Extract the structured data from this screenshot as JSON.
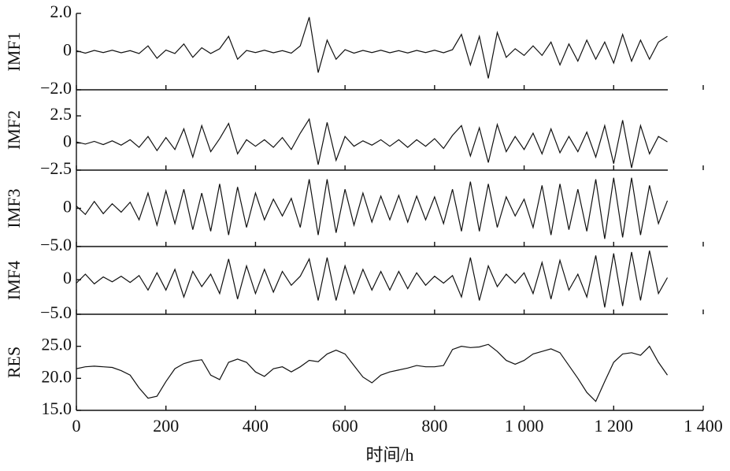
{
  "chart_data": [
    {
      "type": "line",
      "ylabel": "IMF1",
      "ylim": [
        -2,
        2
      ],
      "yticks": [
        {
          "value": 2,
          "label": "2.0"
        },
        0,
        {
          "value": -2,
          "label": "−2.0"
        }
      ],
      "x": [
        0,
        20,
        40,
        60,
        80,
        100,
        120,
        140,
        160,
        180,
        200,
        220,
        240,
        260,
        280,
        300,
        320,
        340,
        360,
        380,
        400,
        420,
        440,
        460,
        480,
        500,
        520,
        540,
        560,
        580,
        600,
        620,
        640,
        660,
        680,
        700,
        720,
        740,
        760,
        780,
        800,
        820,
        840,
        860,
        880,
        900,
        920,
        940,
        960,
        980,
        1000,
        1020,
        1040,
        1060,
        1080,
        1100,
        1120,
        1140,
        1160,
        1180,
        1200,
        1220,
        1240,
        1260,
        1280,
        1300,
        1320
      ],
      "values": [
        0.05,
        -0.08,
        0.06,
        -0.05,
        0.07,
        -0.06,
        0.05,
        -0.1,
        0.3,
        -0.35,
        0.08,
        -0.1,
        0.4,
        -0.3,
        0.2,
        -0.1,
        0.15,
        0.8,
        -0.4,
        0.06,
        -0.05,
        0.07,
        -0.06,
        0.05,
        -0.08,
        0.3,
        1.8,
        -1.1,
        0.6,
        -0.4,
        0.1,
        -0.08,
        0.06,
        -0.05,
        0.07,
        -0.06,
        0.05,
        -0.07,
        0.06,
        -0.05,
        0.07,
        -0.06,
        0.1,
        0.9,
        -0.7,
        0.8,
        -1.4,
        1.0,
        -0.3,
        0.15,
        -0.2,
        0.3,
        -0.2,
        0.5,
        -0.7,
        0.4,
        -0.5,
        0.6,
        -0.4,
        0.5,
        -0.6,
        0.9,
        -0.5,
        0.6,
        -0.4,
        0.5,
        0.8
      ],
      "color": "#111111"
    },
    {
      "type": "line",
      "ylabel": "IMF2",
      "ylim": [
        -2.5,
        4.9
      ],
      "yticks": [
        2.5,
        0,
        {
          "value": -2.5,
          "label": "−2.5"
        }
      ],
      "x": [
        0,
        20,
        40,
        60,
        80,
        100,
        120,
        140,
        160,
        180,
        200,
        220,
        240,
        260,
        280,
        300,
        320,
        340,
        360,
        380,
        400,
        420,
        440,
        460,
        480,
        500,
        520,
        540,
        560,
        580,
        600,
        620,
        640,
        660,
        680,
        700,
        720,
        740,
        760,
        780,
        800,
        820,
        840,
        860,
        880,
        900,
        920,
        940,
        960,
        980,
        1000,
        1020,
        1040,
        1060,
        1080,
        1100,
        1120,
        1140,
        1160,
        1180,
        1200,
        1220,
        1240,
        1260,
        1280,
        1300,
        1320
      ],
      "values": [
        0.1,
        -0.1,
        0.15,
        -0.15,
        0.2,
        -0.2,
        0.3,
        -0.4,
        0.6,
        -0.7,
        0.5,
        -0.6,
        1.3,
        -1.3,
        1.6,
        -0.8,
        0.4,
        1.8,
        -1.0,
        0.3,
        -0.3,
        0.3,
        -0.4,
        0.5,
        -0.6,
        0.9,
        2.2,
        -2.0,
        1.9,
        -1.6,
        0.6,
        -0.3,
        0.2,
        -0.2,
        0.3,
        -0.3,
        0.3,
        -0.4,
        0.3,
        -0.3,
        0.4,
        -0.5,
        0.7,
        1.6,
        -1.2,
        1.4,
        -1.8,
        1.7,
        -0.8,
        0.6,
        -0.6,
        0.9,
        -1.0,
        1.3,
        -0.9,
        0.6,
        -0.8,
        1.0,
        -1.3,
        1.6,
        -1.9,
        2.1,
        -2.3,
        1.6,
        -1.0,
        0.6,
        0.1
      ],
      "color": "#111111"
    },
    {
      "type": "line",
      "ylabel": "IMF3",
      "ylim": [
        -5,
        5
      ],
      "yticks": [
        0,
        {
          "value": -5,
          "label": "−5.0"
        }
      ],
      "x": [
        0,
        20,
        40,
        60,
        80,
        100,
        120,
        140,
        160,
        180,
        200,
        220,
        240,
        260,
        280,
        300,
        320,
        340,
        360,
        380,
        400,
        420,
        440,
        460,
        480,
        500,
        520,
        540,
        560,
        580,
        600,
        620,
        640,
        660,
        680,
        700,
        720,
        740,
        760,
        780,
        800,
        820,
        840,
        860,
        880,
        900,
        920,
        940,
        960,
        980,
        1000,
        1020,
        1040,
        1060,
        1080,
        1100,
        1120,
        1140,
        1160,
        1180,
        1200,
        1220,
        1240,
        1260,
        1280,
        1300,
        1320
      ],
      "values": [
        0.3,
        -0.8,
        0.9,
        -0.7,
        0.6,
        -0.5,
        0.8,
        -1.5,
        2.0,
        -2.2,
        2.3,
        -2.0,
        2.5,
        -2.8,
        2.0,
        -3.0,
        3.2,
        -3.5,
        2.8,
        -2.5,
        2.0,
        -1.5,
        1.2,
        -1.0,
        1.3,
        -2.5,
        3.8,
        -3.5,
        3.8,
        -3.2,
        2.5,
        -2.2,
        2.0,
        -1.8,
        1.6,
        -1.5,
        1.7,
        -1.8,
        1.6,
        -1.5,
        1.5,
        -2.0,
        2.5,
        -3.0,
        3.5,
        -3.0,
        3.2,
        -2.5,
        1.5,
        -1.0,
        1.2,
        -2.5,
        3.0,
        -3.5,
        3.2,
        -2.8,
        2.5,
        -3.0,
        3.8,
        -4.0,
        4.0,
        -3.8,
        4.0,
        -3.5,
        3.0,
        -2.0,
        1.0
      ],
      "color": "#111111"
    },
    {
      "type": "line",
      "ylabel": "IMF4",
      "ylim": [
        -5,
        4.8
      ],
      "yticks": [
        0,
        {
          "value": -5,
          "label": "−5.0"
        }
      ],
      "x": [
        0,
        20,
        40,
        60,
        80,
        100,
        120,
        140,
        160,
        180,
        200,
        220,
        240,
        260,
        280,
        300,
        320,
        340,
        360,
        380,
        400,
        420,
        440,
        460,
        480,
        500,
        520,
        540,
        560,
        580,
        600,
        620,
        640,
        660,
        680,
        700,
        720,
        740,
        760,
        780,
        800,
        820,
        840,
        860,
        880,
        900,
        920,
        940,
        960,
        980,
        1000,
        1020,
        1040,
        1060,
        1080,
        1100,
        1120,
        1140,
        1160,
        1180,
        1200,
        1220,
        1240,
        1260,
        1280,
        1300,
        1320
      ],
      "values": [
        -0.5,
        0.8,
        -0.6,
        0.4,
        -0.3,
        0.5,
        -0.4,
        0.6,
        -1.5,
        1.0,
        -1.5,
        1.5,
        -2.5,
        1.2,
        -1.0,
        0.8,
        -2.0,
        3.0,
        -2.8,
        2.0,
        -2.0,
        1.5,
        -1.8,
        1.2,
        -0.8,
        0.5,
        3.0,
        -3.0,
        3.2,
        -3.0,
        2.0,
        -2.0,
        1.5,
        -1.5,
        1.2,
        -1.5,
        1.2,
        -1.3,
        1.0,
        -0.8,
        0.5,
        -0.5,
        0.6,
        -2.5,
        3.2,
        -3.0,
        2.0,
        -1.0,
        0.8,
        -0.5,
        1.0,
        -2.0,
        2.5,
        -2.8,
        2.8,
        -1.5,
        0.8,
        -2.5,
        3.5,
        -4.0,
        3.8,
        -3.8,
        4.0,
        -3.0,
        4.2,
        -2.0,
        0.3
      ],
      "color": "#111111"
    },
    {
      "type": "line",
      "ylabel": "RES",
      "ylim": [
        15,
        30
      ],
      "yticks": [
        {
          "value": 25,
          "label": "25.0"
        },
        {
          "value": 20,
          "label": "20.0"
        },
        {
          "value": 15,
          "label": "15.0"
        }
      ],
      "xlabel": "时间/h",
      "xlim": [
        0,
        1400
      ],
      "xticks": [
        0,
        200,
        400,
        600,
        800,
        {
          "value": 1000,
          "label": "1 000"
        },
        {
          "value": 1200,
          "label": "1 200"
        },
        {
          "value": 1400,
          "label": "1 400"
        }
      ],
      "x": [
        0,
        20,
        40,
        60,
        80,
        100,
        120,
        140,
        160,
        180,
        200,
        220,
        240,
        260,
        280,
        300,
        320,
        340,
        360,
        380,
        400,
        420,
        440,
        460,
        480,
        500,
        520,
        540,
        560,
        580,
        600,
        620,
        640,
        660,
        680,
        700,
        720,
        740,
        760,
        780,
        800,
        820,
        840,
        860,
        880,
        900,
        920,
        940,
        960,
        980,
        1000,
        1020,
        1040,
        1060,
        1080,
        1100,
        1120,
        1140,
        1160,
        1180,
        1200,
        1220,
        1240,
        1260,
        1280,
        1300,
        1320
      ],
      "values": [
        21.5,
        21.8,
        21.9,
        21.8,
        21.7,
        21.2,
        20.5,
        18.5,
        16.9,
        17.2,
        19.5,
        21.5,
        22.3,
        22.7,
        22.9,
        20.5,
        19.8,
        22.5,
        23.0,
        22.5,
        21.0,
        20.3,
        21.5,
        21.8,
        21.0,
        21.8,
        22.8,
        22.6,
        23.8,
        24.4,
        23.8,
        22.0,
        20.2,
        19.3,
        20.5,
        21.0,
        21.3,
        21.6,
        22.0,
        21.8,
        21.8,
        22.0,
        24.5,
        25.0,
        24.8,
        24.9,
        25.3,
        24.2,
        22.8,
        22.2,
        22.8,
        23.8,
        24.2,
        24.6,
        24.0,
        22.0,
        20.0,
        17.8,
        16.4,
        19.5,
        22.5,
        23.8,
        24.0,
        23.6,
        25.0,
        22.5,
        20.5
      ],
      "color": "#111111"
    }
  ]
}
